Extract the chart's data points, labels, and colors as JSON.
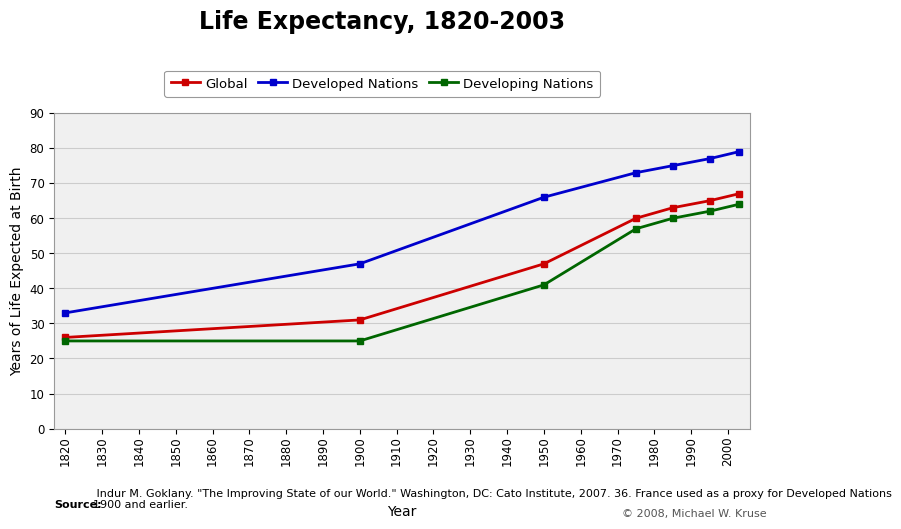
{
  "title": "Life Expectancy, 1820-2003",
  "xlabel": "Year",
  "ylabel": "Years of Life Expected at Birth",
  "source_bold": "Source:",
  "source_rest": " Indur M. Goklany. \"The Improving State of our World.\" Washington, DC: Cato Institute, 2007. 36. France used as a proxy for Developed Nations\n1900 and earlier.",
  "copyright_text": "© 2008, Michael W. Kruse",
  "legend_labels": [
    "Global",
    "Developed Nations",
    "Developing Nations"
  ],
  "legend_colors": [
    "#cc0000",
    "#0000cc",
    "#006600"
  ],
  "ylim": [
    0,
    90
  ],
  "yticks": [
    0,
    10,
    20,
    30,
    40,
    50,
    60,
    70,
    80,
    90
  ],
  "years": [
    1820,
    1900,
    1950,
    1975,
    1985,
    1995,
    2003
  ],
  "global_values": [
    26,
    31,
    47,
    60,
    63,
    65,
    67
  ],
  "developed_values": [
    33,
    47,
    66,
    73,
    75,
    77,
    79
  ],
  "developing_values": [
    25,
    25,
    41,
    57,
    60,
    62,
    64
  ],
  "line_width": 2.0,
  "marker_size": 5,
  "bg_color": "#ffffff",
  "plot_bg_color": "#f0f0f0",
  "grid_color": "#cccccc",
  "title_fontsize": 17,
  "axis_label_fontsize": 10,
  "tick_fontsize": 8.5,
  "legend_fontsize": 9.5,
  "source_fontsize": 8,
  "copyright_fontsize": 8
}
